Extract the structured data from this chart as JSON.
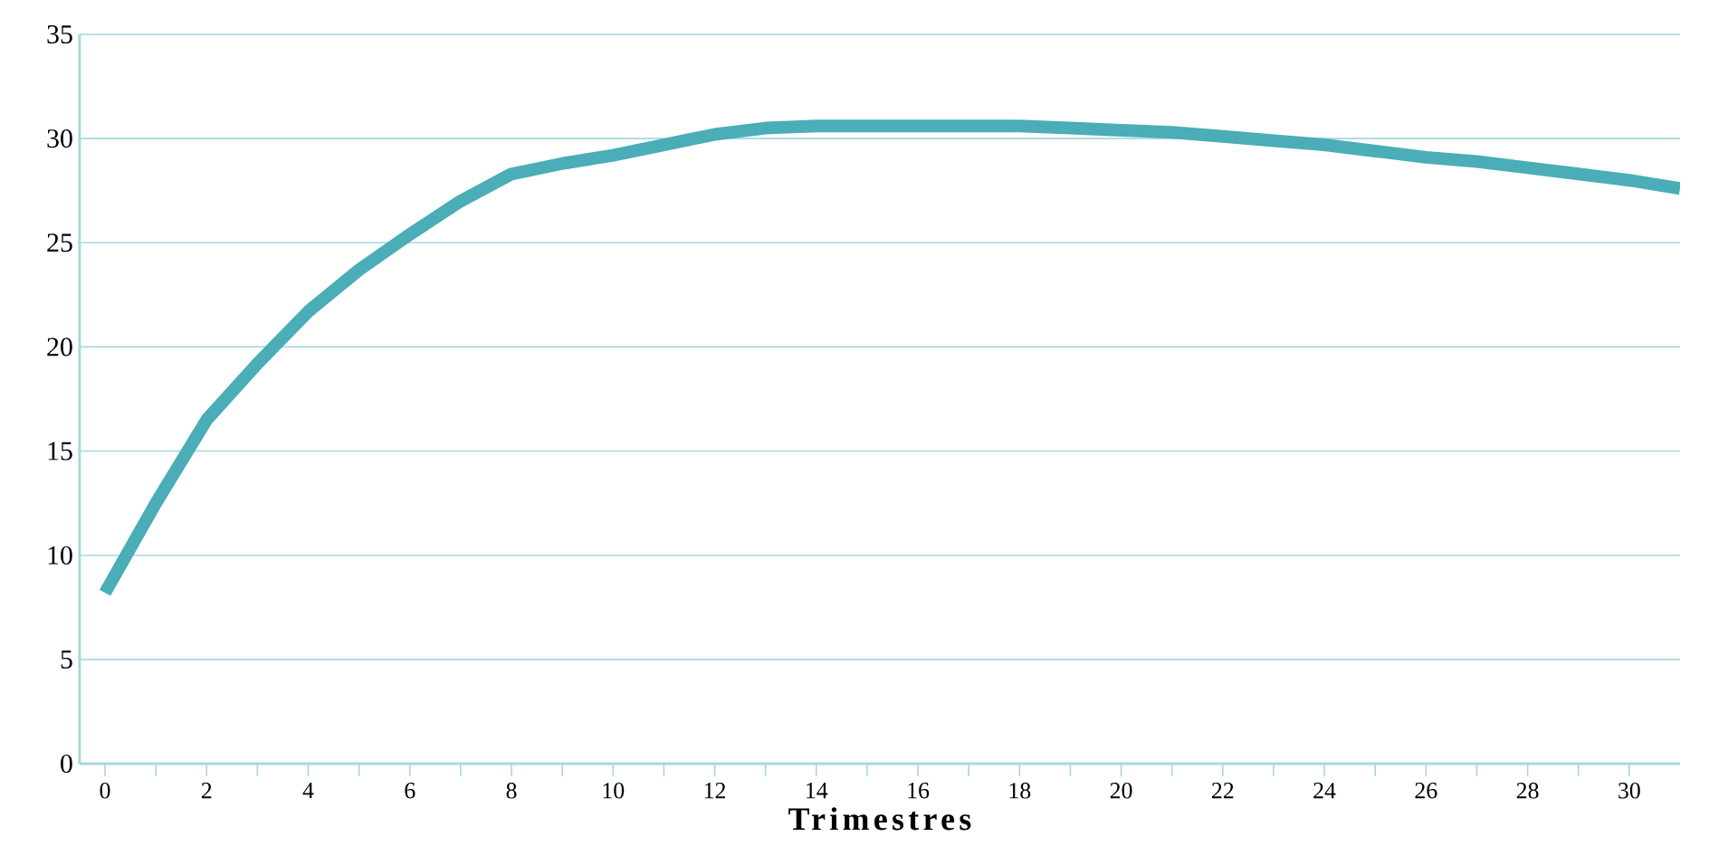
{
  "chart_data": {
    "type": "line",
    "xlabel": "Trimestres",
    "x": [
      0,
      1,
      2,
      3,
      4,
      5,
      6,
      7,
      8,
      9,
      10,
      11,
      12,
      13,
      14,
      15,
      16,
      17,
      18,
      19,
      20,
      21,
      22,
      23,
      24,
      25,
      26,
      27,
      28,
      29,
      30,
      31
    ],
    "values": [
      8.2,
      12.5,
      16.5,
      19.2,
      21.7,
      23.7,
      25.4,
      27.0,
      28.3,
      28.8,
      29.2,
      29.7,
      30.2,
      30.5,
      30.6,
      30.6,
      30.6,
      30.6,
      30.6,
      30.5,
      30.4,
      30.3,
      30.1,
      29.9,
      29.7,
      29.4,
      29.1,
      28.9,
      28.6,
      28.3,
      28.0,
      27.6
    ],
    "color": "#4aadb8",
    "xlim": [
      -0.5,
      31
    ],
    "xticks": [
      0,
      {
        "value": 1,
        "label": null
      },
      2,
      {
        "value": 3,
        "label": null
      },
      4,
      {
        "value": 5,
        "label": null
      },
      6,
      {
        "value": 7,
        "label": null
      },
      8,
      {
        "value": 9,
        "label": null
      },
      10,
      {
        "value": 11,
        "label": null
      },
      12,
      {
        "value": 13,
        "label": null
      },
      14,
      {
        "value": 15,
        "label": null
      },
      16,
      {
        "value": 17,
        "label": null
      },
      18,
      {
        "value": 19,
        "label": null
      },
      20,
      {
        "value": 21,
        "label": null
      },
      22,
      {
        "value": 23,
        "label": null
      },
      24,
      {
        "value": 25,
        "label": null
      },
      26,
      {
        "value": 27,
        "label": null
      },
      28,
      {
        "value": 29,
        "label": null
      },
      30
    ],
    "ylim": [
      0,
      35
    ],
    "yticks": [
      0,
      5,
      10,
      15,
      20,
      25,
      30,
      35
    ],
    "grid": "y",
    "marker": "none",
    "line_style": "solid"
  }
}
